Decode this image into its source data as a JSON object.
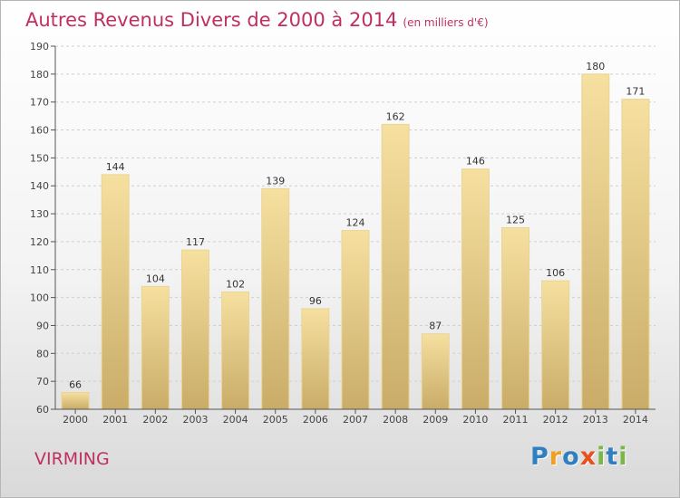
{
  "title": "Autres Revenus Divers de 2000 à 2014",
  "subtitle": "(en milliers d'€)",
  "place": "VIRMING",
  "logo": {
    "text": "Proxiti",
    "letters": [
      {
        "ch": "P",
        "color": "#2f7fc1"
      },
      {
        "ch": "r",
        "color": "#f0a020"
      },
      {
        "ch": "o",
        "color": "#2f7fc1"
      },
      {
        "ch": "x",
        "color": "#e8501e"
      },
      {
        "ch": "i",
        "color": "#7ab648"
      },
      {
        "ch": "t",
        "color": "#2f7fc1"
      },
      {
        "ch": "i",
        "color": "#7ab648"
      }
    ]
  },
  "colors": {
    "title": "#c0305e",
    "bar_light": "#f6e0a0",
    "bar_dark": "#c9ac68",
    "grid": "#cfcfcf",
    "axis": "#555555"
  },
  "chart_data": {
    "type": "bar",
    "categories": [
      "2000",
      "2001",
      "2002",
      "2003",
      "2004",
      "2005",
      "2006",
      "2007",
      "2008",
      "2009",
      "2010",
      "2011",
      "2012",
      "2013",
      "2014"
    ],
    "values": [
      66,
      144,
      104,
      117,
      102,
      139,
      96,
      124,
      162,
      87,
      146,
      125,
      106,
      180,
      171
    ],
    "ylim": [
      60,
      190
    ],
    "yticks": [
      60,
      70,
      80,
      90,
      100,
      110,
      120,
      130,
      140,
      150,
      160,
      170,
      180,
      190
    ],
    "grid": true
  }
}
